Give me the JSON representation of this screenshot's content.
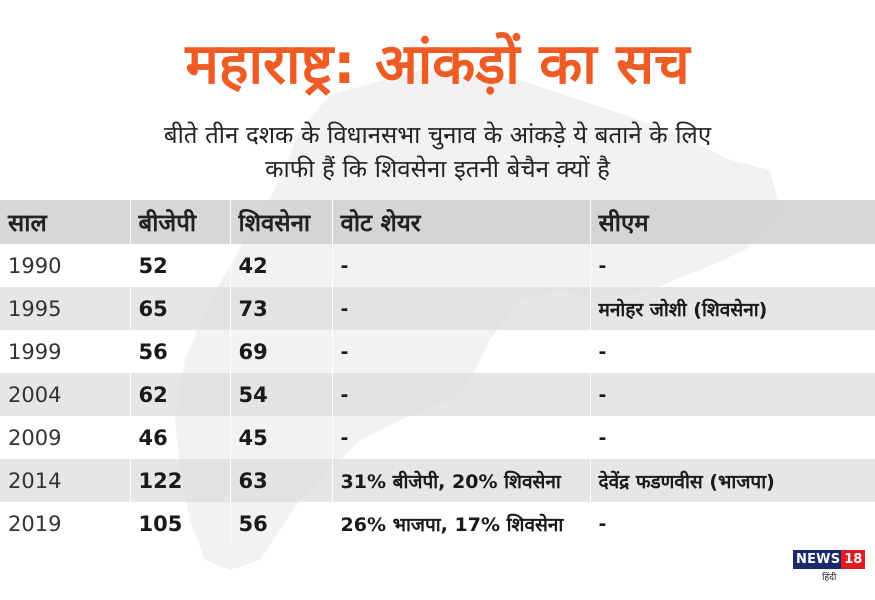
{
  "title": "महाराष्ट्र: आंकड़ों का सच",
  "subtitle": {
    "line1": "बीते तीन दशक के विधानसभा चुनाव के आंकड़े ये बताने के लिए",
    "line2": "काफी हैं कि शिवसेना इतनी बेचैन क्यों है"
  },
  "table": {
    "headers": [
      "साल",
      "बीजेपी",
      "शिवसेना",
      "वोट शेयर",
      "सीएम"
    ],
    "rows": [
      {
        "year": "1990",
        "bjp": "52",
        "shivsena": "42",
        "vote_share": "-",
        "cm": "-"
      },
      {
        "year": "1995",
        "bjp": "65",
        "shivsena": "73",
        "vote_share": "-",
        "cm": "मनोहर जोशी (शिवसेना)"
      },
      {
        "year": "1999",
        "bjp": "56",
        "shivsena": "69",
        "vote_share": "-",
        "cm": "-"
      },
      {
        "year": "2004",
        "bjp": "62",
        "shivsena": "54",
        "vote_share": "-",
        "cm": "-"
      },
      {
        "year": "2009",
        "bjp": "46",
        "shivsena": "45",
        "vote_share": "-",
        "cm": "-"
      },
      {
        "year": "2014",
        "bjp": "122",
        "shivsena": "63",
        "vote_share": "31% बीजेपी, 20% शिवसेना",
        "cm": "देवेंद्र फडणवीस (भाजपा)"
      },
      {
        "year": "2019",
        "bjp": "105",
        "shivsena": "56",
        "vote_share": "26% भाजपा, 17% शिवसेना",
        "cm": "-"
      }
    ]
  },
  "logo": {
    "news": "NEWS",
    "number": "18",
    "language": "हिंदी"
  },
  "colors": {
    "title": "#ef5b25",
    "header_bg": "#cdcdcd",
    "stripe": "#dedede"
  }
}
